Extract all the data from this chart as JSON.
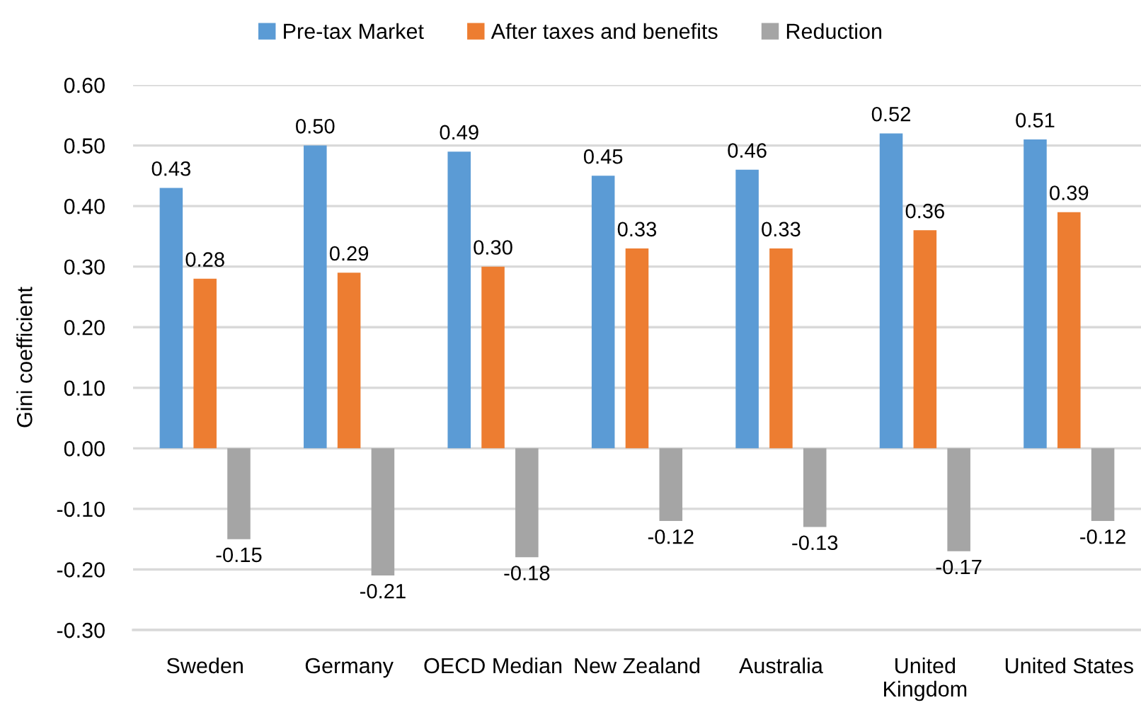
{
  "chart_data": {
    "type": "bar",
    "ylabel": "Gini coefficient",
    "categories": [
      "Sweden",
      "Germany",
      "OECD Median",
      "New Zealand",
      "Australia",
      "United Kingdom",
      "United States"
    ],
    "series": [
      {
        "name": "Pre-tax Market",
        "color": "#5b9bd5",
        "values": [
          0.43,
          0.5,
          0.49,
          0.45,
          0.46,
          0.52,
          0.51
        ],
        "value_labels": [
          "0.43",
          "0.50",
          "0.49",
          "0.45",
          "0.46",
          "0.52",
          "0.51"
        ]
      },
      {
        "name": "After taxes and benefits",
        "color": "#ed7d31",
        "values": [
          0.28,
          0.29,
          0.3,
          0.33,
          0.33,
          0.36,
          0.39
        ],
        "value_labels": [
          "0.28",
          "0.29",
          "0.30",
          "0.33",
          "0.33",
          "0.36",
          "0.39"
        ]
      },
      {
        "name": "Reduction",
        "color": "#a5a5a5",
        "values": [
          -0.15,
          -0.21,
          -0.18,
          -0.12,
          -0.13,
          -0.17,
          -0.12
        ],
        "value_labels": [
          "-0.15",
          "-0.21",
          "-0.18",
          "-0.12",
          "-0.13",
          "-0.17",
          "-0.12"
        ]
      }
    ],
    "ylim": [
      -0.3,
      0.6
    ],
    "yticks": [
      {
        "value": -0.3,
        "label": "-0.30"
      },
      {
        "value": -0.2,
        "label": "-0.20"
      },
      {
        "value": -0.1,
        "label": "-0.10"
      },
      {
        "value": 0,
        "label": "0.00"
      },
      {
        "value": 0.1,
        "label": "0.10"
      },
      {
        "value": 0.2,
        "label": "0.20"
      },
      {
        "value": 0.3,
        "label": "0.30"
      },
      {
        "value": 0.4,
        "label": "0.40"
      },
      {
        "value": 0.5,
        "label": "0.50"
      },
      {
        "value": 0.6,
        "label": "0.60"
      }
    ],
    "grid": "y",
    "legend": "top"
  }
}
